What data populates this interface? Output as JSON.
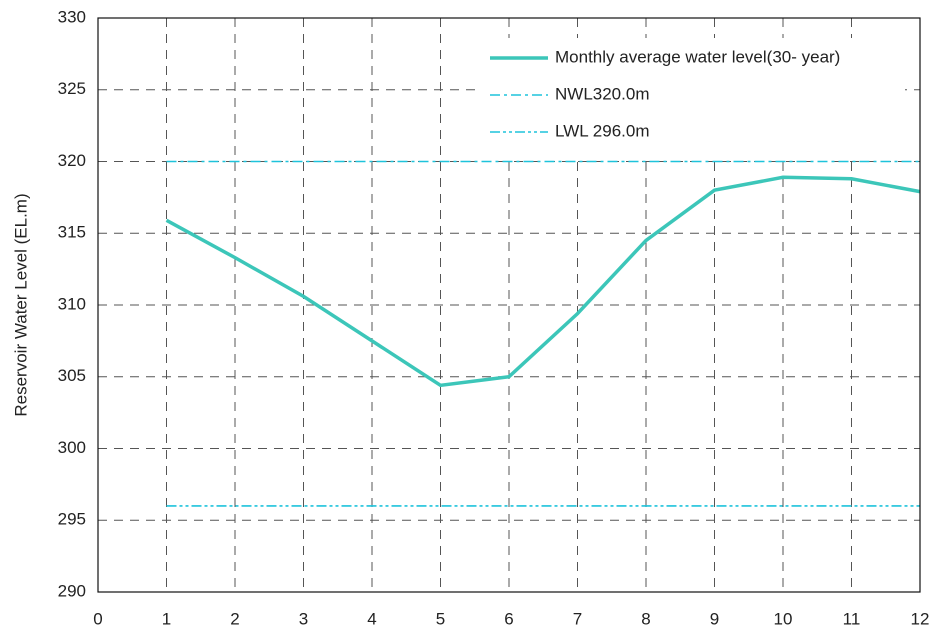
{
  "chart_data": {
    "type": "line",
    "y_label": "Reservoir Water Level (EL.m)",
    "x": [
      1,
      2,
      3,
      4,
      5,
      6,
      7,
      8,
      9,
      10,
      11,
      12
    ],
    "series": [
      {
        "name": "Monthly average water level(30- year)",
        "color": "#3cc6b9",
        "style": "solid",
        "values": [
          315.9,
          313.3,
          310.6,
          307.5,
          304.4,
          305.0,
          309.4,
          314.5,
          318.0,
          318.9,
          318.8,
          317.9
        ]
      },
      {
        "name": "NWL320.0m",
        "color": "#1ec3db",
        "style": "dashdot",
        "values": [
          320,
          320,
          320,
          320,
          320,
          320,
          320,
          320,
          320,
          320,
          320,
          320
        ]
      },
      {
        "name": "LWL 296.0m",
        "color": "#1ec3db",
        "style": "dashdotdot",
        "values": [
          296,
          296,
          296,
          296,
          296,
          296,
          296,
          296,
          296,
          296,
          296,
          296
        ]
      }
    ],
    "xlim": [
      0,
      12
    ],
    "xticks": [
      0,
      1,
      2,
      3,
      4,
      5,
      6,
      7,
      8,
      9,
      10,
      11,
      12
    ],
    "ylim": [
      290,
      330
    ],
    "yticks": [
      290,
      295,
      300,
      305,
      310,
      315,
      320,
      325,
      330
    ],
    "grid": true,
    "legend": "upper right"
  }
}
